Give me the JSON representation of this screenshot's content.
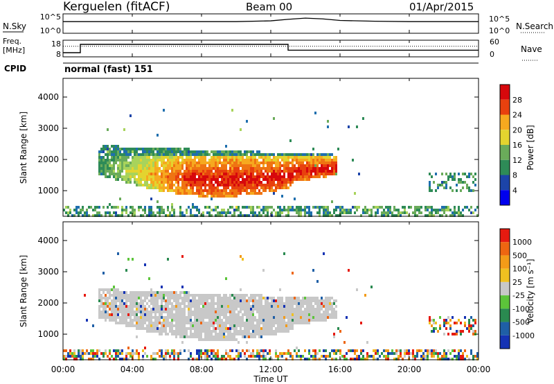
{
  "header": {
    "station": "Kerguelen (fitACF)",
    "beam": "Beam 00",
    "date": "01/Apr/2015"
  },
  "summary_panels": {
    "nsky_label": "N.Sky",
    "nsearch_label": "N.Search",
    "freq_label_1": "Freq.",
    "freq_label_2": "[MHz]",
    "nave_label": "Nave",
    "cpid_label": "CPID",
    "cpid_text": "normal (fast) 151",
    "nsky_ticks": [
      "10^5",
      "10^0"
    ],
    "nsearch_ticks": [
      "10^5",
      "10^0"
    ],
    "freq_ticks": [
      "18",
      "8"
    ],
    "nave_ticks": [
      "60",
      "0"
    ]
  },
  "time_axis": {
    "label": "Time UT",
    "ticks": [
      "00:00",
      "04:00",
      "08:00",
      "12:00",
      "16:00",
      "20:00",
      "00:00"
    ]
  },
  "chart_data": [
    {
      "type": "line",
      "panel": "noise",
      "series": [
        {
          "name": "N.Sky",
          "x_hours": [
            0,
            2,
            4,
            6,
            8,
            10,
            12,
            13,
            14,
            15,
            16,
            18,
            20,
            22,
            24
          ],
          "y_log10": [
            3.0,
            3.0,
            3.0,
            3.0,
            3.0,
            3.0,
            3.2,
            3.6,
            3.9,
            3.7,
            3.3,
            3.1,
            3.0,
            3.0,
            3.0
          ]
        },
        {
          "name": "N.Search",
          "x_hours": [
            0,
            24
          ],
          "y_log10": [
            0,
            0
          ]
        }
      ],
      "ylim": [
        0,
        5
      ]
    },
    {
      "type": "line",
      "panel": "frequency",
      "series": [
        {
          "name": "Freq. [MHz]",
          "x_hours": [
            0,
            1,
            1,
            13,
            13,
            24
          ],
          "y": [
            10.5,
            10.5,
            15.5,
            15.5,
            12,
            12
          ]
        },
        {
          "name": "Nave",
          "x_hours": [
            0,
            24
          ],
          "y": [
            38,
            38
          ]
        }
      ],
      "ylim": [
        8,
        18
      ],
      "ylim_right": [
        0,
        60
      ]
    },
    {
      "type": "heatmap",
      "panel": "power",
      "ylabel": "Slant Range [km]",
      "xlabel": "",
      "colorbar_label": "Power [dB]",
      "colorbar_ticks": [
        "28",
        "24",
        "20",
        "16",
        "12",
        "8",
        "4"
      ],
      "yticks": [
        "4000",
        "3000",
        "2000",
        "1000"
      ],
      "ylim": [
        180,
        4600
      ],
      "xlim_hours": [
        0,
        24
      ],
      "color_scale": [
        "#0000ee",
        "#1c44a8",
        "#1f6fae",
        "#2e8b57",
        "#6aab5a",
        "#a8d35b",
        "#e3d42f",
        "#f6a91f",
        "#ef7412",
        "#e8410e",
        "#d7080c"
      ],
      "levels_db": [
        0,
        4,
        8,
        12,
        16,
        20,
        24,
        28,
        32
      ],
      "features": [
        {
          "description": "main echo band",
          "start_hour": 2.0,
          "end_hour": 15.8,
          "range_km": [
            900,
            2400
          ],
          "peak_db": 28
        },
        {
          "description": "near range ground clutter",
          "start_hour": 0,
          "end_hour": 24,
          "range_km": [
            180,
            500
          ],
          "peak_db": 10
        },
        {
          "description": "late scatter patch",
          "start_hour": 21.0,
          "end_hour": 23.8,
          "range_km": [
            1000,
            1600
          ],
          "peak_db": 8
        }
      ]
    },
    {
      "type": "heatmap",
      "panel": "velocity",
      "ylabel": "Slant Range [km]",
      "xlabel": "Time UT",
      "colorbar_label": "Velocity [m s⁻¹]",
      "colorbar_ticks": [
        "1000",
        "500",
        "100",
        "25",
        "-25",
        "-100",
        "-500",
        "-1000"
      ],
      "yticks": [
        "4000",
        "3000",
        "2000",
        "1000"
      ],
      "ylim": [
        180,
        4600
      ],
      "xlim_hours": [
        0,
        24
      ],
      "color_scale": [
        "#1533b4",
        "#1f5fa6",
        "#2a8a50",
        "#5cc43a",
        "#c8c8c8",
        "#f0c020",
        "#f39b18",
        "#ee6611",
        "#e61a10"
      ],
      "levels_ms": [
        -1000,
        -500,
        -100,
        -25,
        25,
        100,
        500,
        1000
      ],
      "features": [
        {
          "description": "ground scatter (grey)",
          "start_hour": 2.0,
          "end_hour": 15.8,
          "range_km": [
            900,
            2400
          ],
          "velocity": 0
        },
        {
          "description": "near range mixed velocities",
          "start_hour": 0,
          "end_hour": 24,
          "range_km": [
            180,
            500
          ],
          "velocity": 50
        }
      ]
    }
  ]
}
